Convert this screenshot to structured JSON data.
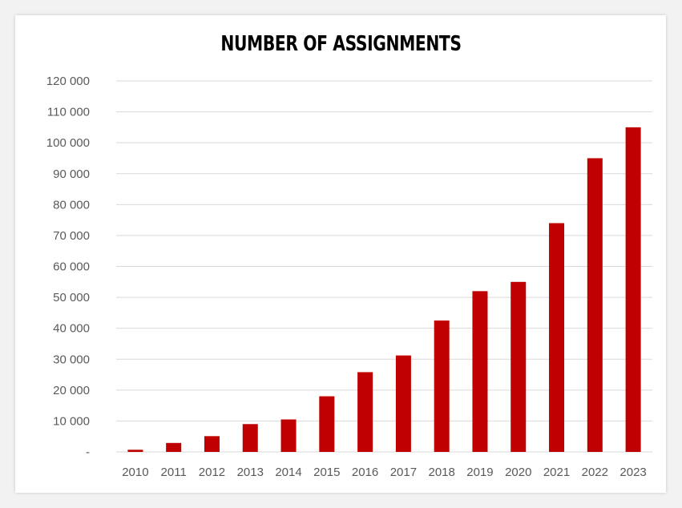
{
  "chart_data": {
    "type": "bar",
    "title": "NUMBER OF ASSIGNMENTS",
    "xlabel": "",
    "ylabel": "",
    "categories": [
      "2010",
      "2011",
      "2012",
      "2013",
      "2014",
      "2015",
      "2016",
      "2017",
      "2018",
      "2019",
      "2020",
      "2021",
      "2022",
      "2023"
    ],
    "values": [
      700,
      2900,
      5100,
      9000,
      10500,
      18000,
      25800,
      31200,
      42500,
      52000,
      55000,
      74000,
      95000,
      105000
    ],
    "ylim": [
      0,
      120000
    ],
    "yticks": [
      0,
      10000,
      20000,
      30000,
      40000,
      50000,
      60000,
      70000,
      80000,
      90000,
      100000,
      110000,
      120000
    ],
    "ytick_labels": [
      "-",
      "10 000",
      "20 000",
      "30 000",
      "40 000",
      "50 000",
      "60 000",
      "70 000",
      "80 000",
      "90 000",
      "100 000",
      "110 000",
      "120 000"
    ],
    "grid": true,
    "legend": "none",
    "bar_color": "#c00000",
    "grid_color": "#d9d9d9"
  }
}
